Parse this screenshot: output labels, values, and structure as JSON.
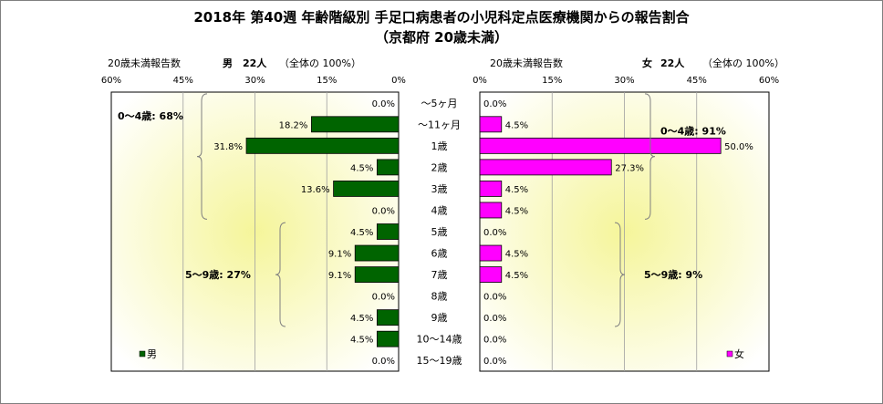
{
  "title_line1": "2018年 第40週 年齢階級別 手足口病患者の小児科定点医療機関からの報告割合",
  "title_line2": "（京都府 20歳未満）",
  "left_header": {
    "label": "20歳未満報告数",
    "sex": "男",
    "count": "22人",
    "note": "（全体の 100%）"
  },
  "right_header": {
    "label": "20歳未満報告数",
    "sex": "女",
    "count": "22人",
    "note": "（全体の 100%）"
  },
  "legend": {
    "male": "男",
    "female": "女"
  },
  "brackets": {
    "male_0_4": "0～4歳: 68%",
    "male_5_9": "5～9歳: 27%",
    "female_0_4": "0～4歳: 91%",
    "female_5_9": "5～9歳: 9%"
  },
  "colors": {
    "male": "#006400",
    "female": "#ff00ff",
    "plot_bg_outer": "#ffffff",
    "plot_bg_inner": "#f5f59a"
  },
  "chart_data": {
    "type": "bar",
    "orientation": "horizontal-population-pyramid",
    "categories": [
      "～5ヶ月",
      "～11ヶ月",
      "1歳",
      "2歳",
      "3歳",
      "4歳",
      "5歳",
      "6歳",
      "7歳",
      "8歳",
      "9歳",
      "10～14歳",
      "15～19歳"
    ],
    "x_ticks_left": [
      "60%",
      "45%",
      "30%",
      "15%",
      "0%"
    ],
    "x_ticks_right": [
      "0%",
      "15%",
      "30%",
      "45%",
      "60%"
    ],
    "xlim": [
      0,
      60
    ],
    "series": [
      {
        "name": "男",
        "values": [
          0.0,
          18.2,
          31.8,
          4.5,
          13.6,
          0.0,
          4.5,
          9.1,
          9.1,
          0.0,
          4.5,
          4.5,
          0.0
        ],
        "labels": [
          "0.0%",
          "18.2%",
          "31.8%",
          "4.5%",
          "13.6%",
          "0.0%",
          "4.5%",
          "9.1%",
          "9.1%",
          "0.0%",
          "4.5%",
          "4.5%",
          "0.0%"
        ]
      },
      {
        "name": "女",
        "values": [
          0.0,
          4.5,
          50.0,
          27.3,
          4.5,
          4.5,
          0.0,
          4.5,
          4.5,
          0.0,
          0.0,
          0.0,
          0.0
        ],
        "labels": [
          "0.0%",
          "4.5%",
          "50.0%",
          "27.3%",
          "4.5%",
          "4.5%",
          "0.0%",
          "4.5%",
          "4.5%",
          "0.0%",
          "0.0%",
          "0.0%",
          "0.0%"
        ]
      }
    ],
    "grid": true
  }
}
